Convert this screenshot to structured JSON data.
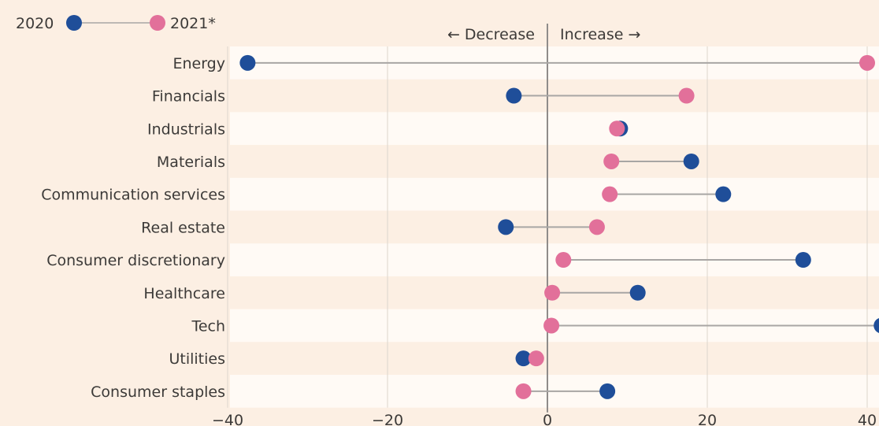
{
  "chart_data": {
    "type": "dumbbell",
    "title": "",
    "xlabel": "",
    "ylabel": "",
    "xlim": [
      -40,
      40
    ],
    "xticks": [
      -40,
      -20,
      0,
      20,
      40
    ],
    "grid": true,
    "legend_position": "top-left",
    "categories": [
      "Energy",
      "Financials",
      "Industrials",
      "Materials",
      "Communication services",
      "Real estate",
      "Consumer discretionary",
      "Healthcare",
      "Tech",
      "Utilities",
      "Consumer staples"
    ],
    "series": [
      {
        "name": "2020",
        "color": "#1f4e99",
        "values": [
          -37.5,
          -4.2,
          9.1,
          18,
          22,
          -5.2,
          32,
          11.3,
          41.8,
          -3,
          7.5
        ]
      },
      {
        "name": "2021*",
        "color": "#e2709a",
        "values": [
          40,
          17.4,
          8.7,
          8,
          7.8,
          6.2,
          2,
          0.6,
          0.5,
          -1.4,
          -3
        ]
      }
    ],
    "annotations": {
      "decrease": "← Decrease",
      "increase": "Increase →"
    }
  },
  "colors": {
    "background": "#fcefe3",
    "band": "#fffaf5",
    "connector": "#a8a6a4",
    "zero_line": "#8f8c8a",
    "grid": "#ddd5cc"
  }
}
